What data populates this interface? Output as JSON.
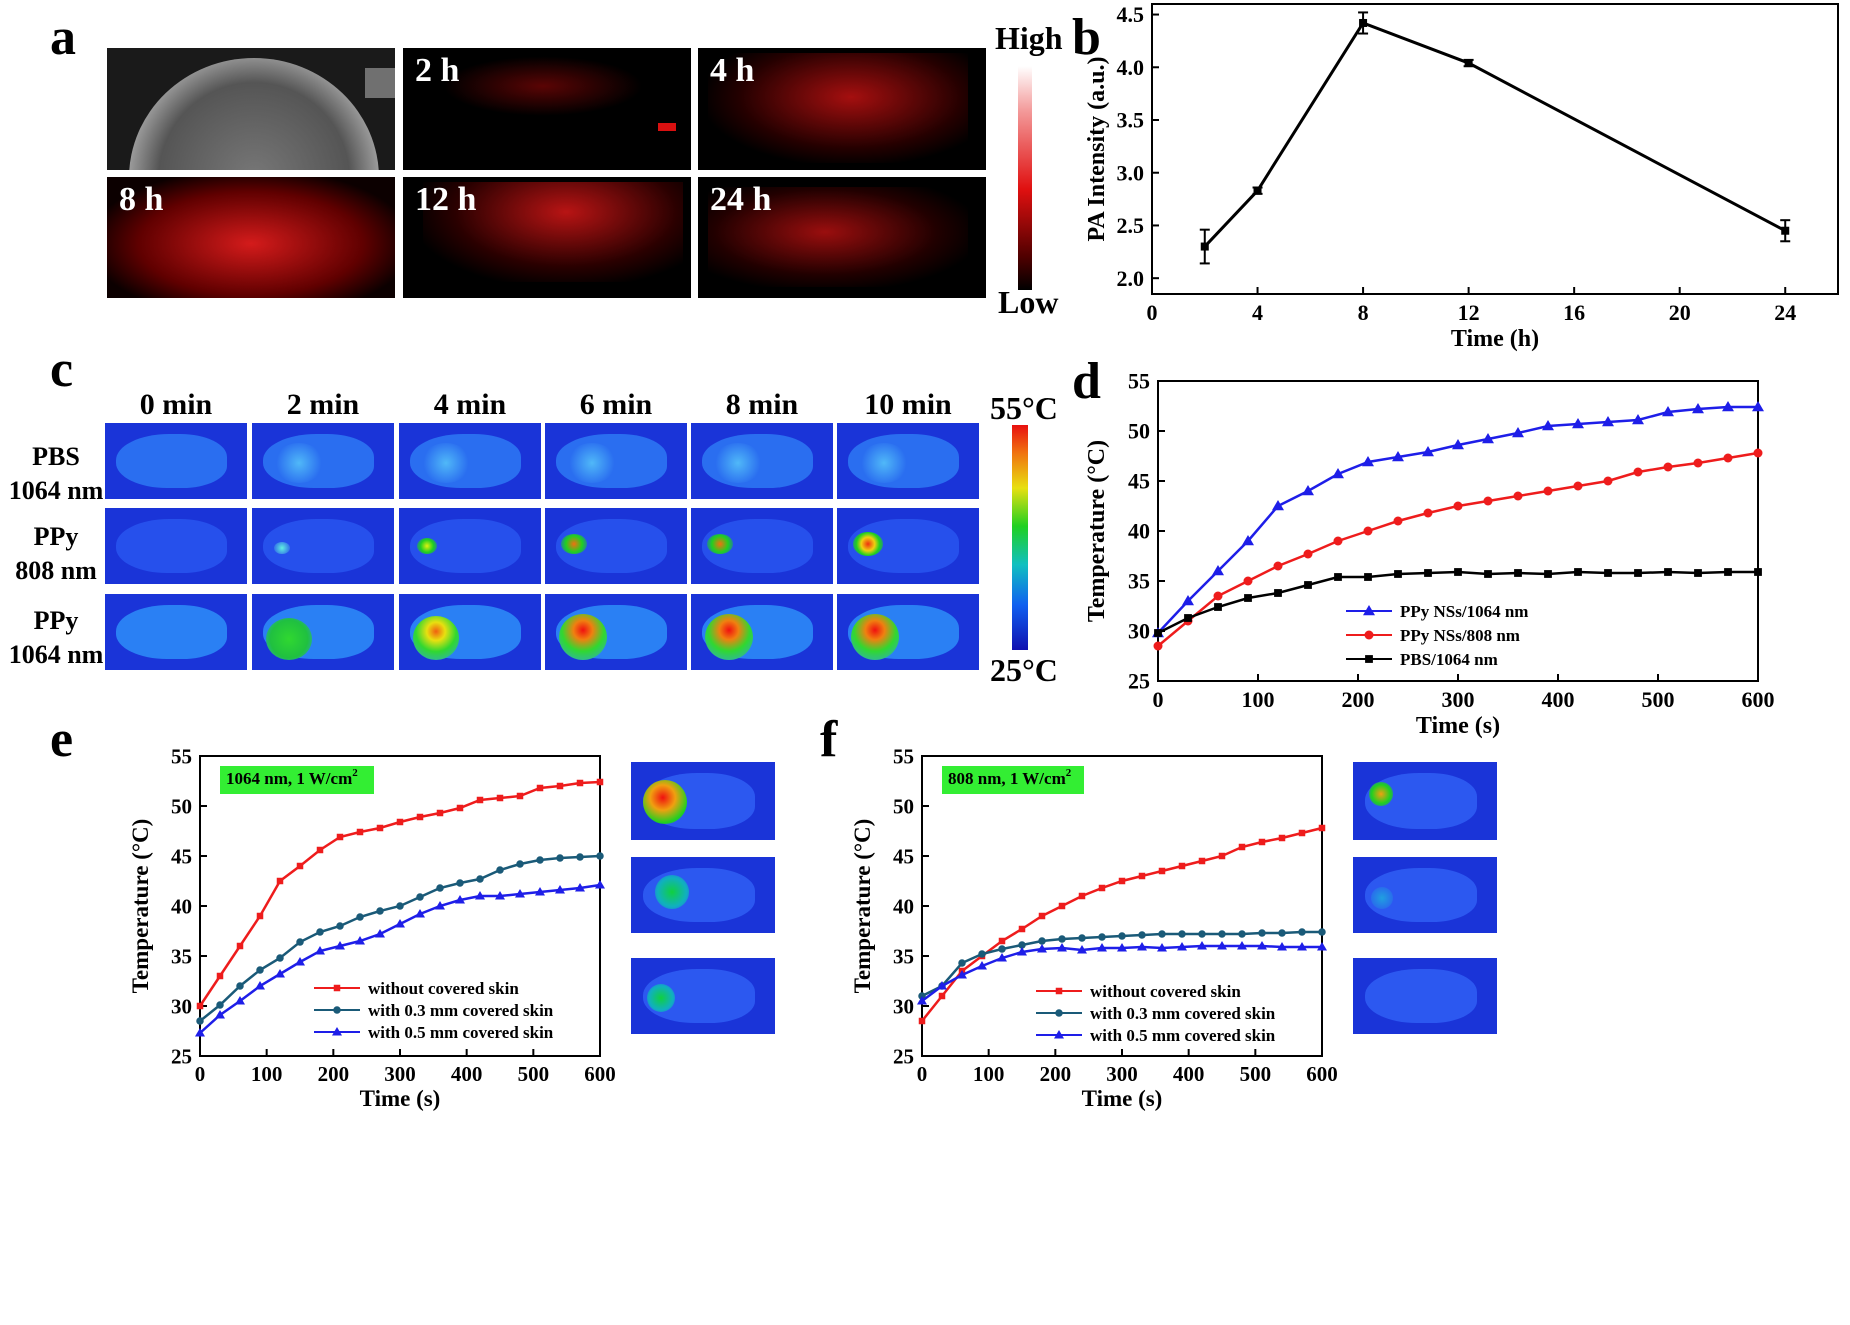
{
  "panel_labels": {
    "a": "a",
    "b": "b",
    "c": "c",
    "d": "d",
    "e": "e",
    "f": "f"
  },
  "panel_a": {
    "tiles": [
      {
        "label": ""
      },
      {
        "label": "2 h"
      },
      {
        "label": "4 h"
      },
      {
        "label": "8 h"
      },
      {
        "label": "12 h"
      },
      {
        "label": "24 h"
      }
    ],
    "scale_high": "High",
    "scale_low": "Low"
  },
  "panel_c": {
    "columns": [
      "0 min",
      "2 min",
      "4 min",
      "6 min",
      "8 min",
      "10 min"
    ],
    "rows": [
      {
        "line1": "PBS",
        "line2": "1064 nm"
      },
      {
        "line1": "PPy",
        "line2": "808 nm"
      },
      {
        "line1": "PPy",
        "line2": "1064 nm"
      }
    ],
    "scale_max": "55°C",
    "scale_min": "25°C"
  },
  "colors": {
    "red": "#ee1c1c",
    "blue": "#1e1ee8",
    "black": "#000000",
    "teal": "#1a5a78",
    "green_box": "#33ee33"
  },
  "chart_data": [
    {
      "id": "b",
      "type": "line",
      "xlabel": "Time (h)",
      "ylabel": "PA Intensity (a.u.)",
      "xlim": [
        0,
        26
      ],
      "ylim": [
        1.85,
        4.6
      ],
      "xticks": [
        0,
        4,
        8,
        12,
        16,
        20,
        24
      ],
      "yticks": [
        2.0,
        2.5,
        3.0,
        3.5,
        4.0,
        4.5
      ],
      "ytick_labels": [
        "2.0",
        "2.5",
        "3.0",
        "3.5",
        "4.0",
        "4.5"
      ],
      "series": [
        {
          "name": "PA",
          "x": [
            2,
            4,
            8,
            12,
            24
          ],
          "y": [
            2.3,
            2.83,
            4.42,
            4.04,
            2.45
          ],
          "err": [
            0.16,
            0.03,
            0.1,
            0.03,
            0.1
          ]
        }
      ]
    },
    {
      "id": "d",
      "type": "line",
      "xlabel": "Time (s)",
      "ylabel": "Temperature (°C)",
      "xlim": [
        0,
        600
      ],
      "ylim": [
        25,
        55
      ],
      "xticks": [
        0,
        100,
        200,
        300,
        400,
        500,
        600
      ],
      "yticks": [
        25,
        30,
        35,
        40,
        45,
        50,
        55
      ],
      "legend": "bottom-right",
      "x": [
        0,
        30,
        60,
        90,
        120,
        150,
        180,
        210,
        240,
        270,
        300,
        330,
        360,
        390,
        420,
        450,
        480,
        510,
        540,
        570,
        600
      ],
      "series": [
        {
          "name": "PPy NSs/1064 nm",
          "color": "#1e1ee8",
          "marker": "triangle",
          "y": [
            29.8,
            33,
            36,
            39,
            42.5,
            44,
            45.7,
            46.9,
            47.4,
            47.9,
            48.6,
            49.2,
            49.8,
            50.5,
            50.7,
            50.9,
            51.1,
            51.9,
            52.2,
            52.4,
            52.4
          ]
        },
        {
          "name": "PPy NSs/808 nm",
          "color": "#ee1c1c",
          "marker": "circle",
          "y": [
            28.5,
            31,
            33.5,
            35,
            36.5,
            37.7,
            39,
            40,
            41,
            41.8,
            42.5,
            43,
            43.5,
            44,
            44.5,
            45,
            45.9,
            46.4,
            46.8,
            47.3,
            47.8
          ]
        },
        {
          "name": "PBS/1064 nm",
          "color": "#000000",
          "marker": "square",
          "y": [
            29.8,
            31.3,
            32.4,
            33.3,
            33.8,
            34.6,
            35.4,
            35.4,
            35.7,
            35.8,
            35.9,
            35.7,
            35.8,
            35.7,
            35.9,
            35.8,
            35.8,
            35.9,
            35.8,
            35.9,
            35.9
          ]
        }
      ]
    },
    {
      "id": "e",
      "type": "line",
      "xlabel": "Time (s)",
      "ylabel": "Temperature (°C)",
      "xlim": [
        0,
        600
      ],
      "ylim": [
        25,
        55
      ],
      "xticks": [
        0,
        100,
        200,
        300,
        400,
        500,
        600
      ],
      "yticks": [
        25,
        30,
        35,
        40,
        45,
        50,
        55
      ],
      "annotation": "1064 nm, 1 W/cm",
      "annotation_sup": "2",
      "legend": "bottom-right",
      "x": [
        0,
        30,
        60,
        90,
        120,
        150,
        180,
        210,
        240,
        270,
        300,
        330,
        360,
        390,
        420,
        450,
        480,
        510,
        540,
        570,
        600
      ],
      "series": [
        {
          "name": "without covered skin",
          "color": "#ee1c1c",
          "marker": "square",
          "y": [
            30,
            33,
            36,
            39,
            42.5,
            44,
            45.6,
            46.9,
            47.4,
            47.8,
            48.4,
            48.9,
            49.3,
            49.8,
            50.6,
            50.8,
            51,
            51.8,
            52,
            52.3,
            52.4
          ]
        },
        {
          "name": "with 0.3 mm covered skin",
          "color": "#1a5a78",
          "marker": "circle",
          "y": [
            28.5,
            30.1,
            32,
            33.6,
            34.8,
            36.4,
            37.4,
            38,
            38.9,
            39.5,
            40,
            40.9,
            41.8,
            42.3,
            42.7,
            43.6,
            44.2,
            44.6,
            44.8,
            44.9,
            45
          ]
        },
        {
          "name": "with 0.5 mm covered skin",
          "color": "#1e1ee8",
          "marker": "triangle",
          "y": [
            27.3,
            29.1,
            30.5,
            32,
            33.2,
            34.4,
            35.5,
            36,
            36.5,
            37.2,
            38.2,
            39.2,
            40,
            40.6,
            41,
            41,
            41.2,
            41.4,
            41.6,
            41.8,
            42.1
          ]
        }
      ]
    },
    {
      "id": "f",
      "type": "line",
      "xlabel": "Time (s)",
      "ylabel": "Temperature (°C)",
      "xlim": [
        0,
        600
      ],
      "ylim": [
        25,
        55
      ],
      "xticks": [
        0,
        100,
        200,
        300,
        400,
        500,
        600
      ],
      "yticks": [
        25,
        30,
        35,
        40,
        45,
        50,
        55
      ],
      "annotation": "808 nm, 1 W/cm",
      "annotation_sup": "2",
      "legend": "bottom-right",
      "x": [
        0,
        30,
        60,
        90,
        120,
        150,
        180,
        210,
        240,
        270,
        300,
        330,
        360,
        390,
        420,
        450,
        480,
        510,
        540,
        570,
        600
      ],
      "series": [
        {
          "name": "without covered skin",
          "color": "#ee1c1c",
          "marker": "square",
          "y": [
            28.5,
            31,
            33.5,
            35,
            36.5,
            37.7,
            39,
            40,
            41,
            41.8,
            42.5,
            43,
            43.5,
            44,
            44.5,
            45,
            45.9,
            46.4,
            46.8,
            47.3,
            47.8
          ]
        },
        {
          "name": "with 0.3 mm covered skin",
          "color": "#1a5a78",
          "marker": "circle",
          "y": [
            31,
            32,
            34.3,
            35.2,
            35.7,
            36.1,
            36.5,
            36.7,
            36.8,
            36.9,
            37,
            37.1,
            37.2,
            37.2,
            37.2,
            37.2,
            37.2,
            37.3,
            37.3,
            37.4,
            37.4
          ]
        },
        {
          "name": "with 0.5 mm covered skin",
          "color": "#1e1ee8",
          "marker": "triangle",
          "y": [
            30.5,
            32,
            33.1,
            34,
            34.8,
            35.4,
            35.7,
            35.8,
            35.6,
            35.8,
            35.8,
            35.9,
            35.8,
            35.9,
            36,
            36,
            36,
            36,
            35.9,
            35.9,
            35.9
          ]
        }
      ]
    }
  ]
}
